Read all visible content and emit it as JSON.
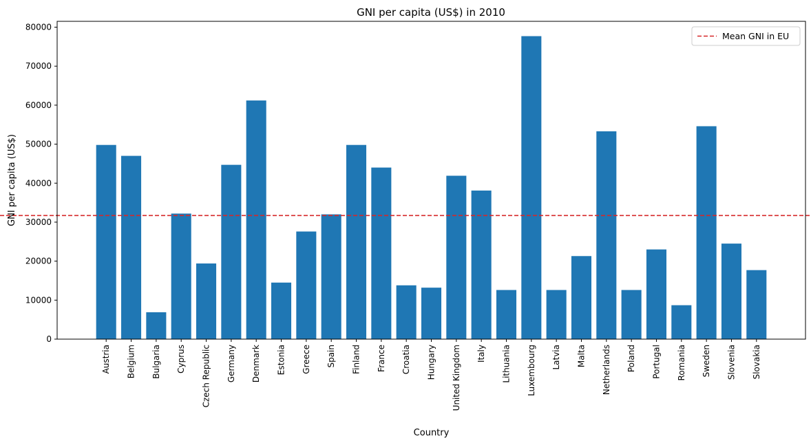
{
  "chart_data": {
    "type": "bar",
    "title": "GNI per capita (US$) in 2010",
    "xlabel": "Country",
    "ylabel": "GNI per capita (US$)",
    "ylim": [
      0,
      81500
    ],
    "yticks": [
      0,
      10000,
      20000,
      30000,
      40000,
      50000,
      60000,
      70000,
      80000
    ],
    "categories": [
      "Austria",
      "Belgium",
      "Bulgaria",
      "Cyprus",
      "Czech Republic",
      "Germany",
      "Denmark",
      "Estonia",
      "Greece",
      "Spain",
      "Finland",
      "France",
      "Croatia",
      "Hungary",
      "United Kingdom",
      "Italy",
      "Lithuania",
      "Luxembourg",
      "Latvia",
      "Malta",
      "Netherlands",
      "Poland",
      "Portugal",
      "Romania",
      "Sweden",
      "Slovenia",
      "Slovakia"
    ],
    "values": [
      49800,
      47000,
      6900,
      32200,
      19400,
      44700,
      61200,
      14500,
      27600,
      32000,
      49800,
      44000,
      13800,
      13200,
      41900,
      38100,
      12600,
      77700,
      12600,
      21300,
      53300,
      12600,
      23000,
      8700,
      54600,
      24500,
      17700
    ],
    "bar_color": "#1f77b4",
    "reference_line": {
      "label": "Mean GNI in EU",
      "value": 31700,
      "color": "#d62728",
      "style": "dashed"
    },
    "legend_position": "top-right",
    "grid": false
  }
}
